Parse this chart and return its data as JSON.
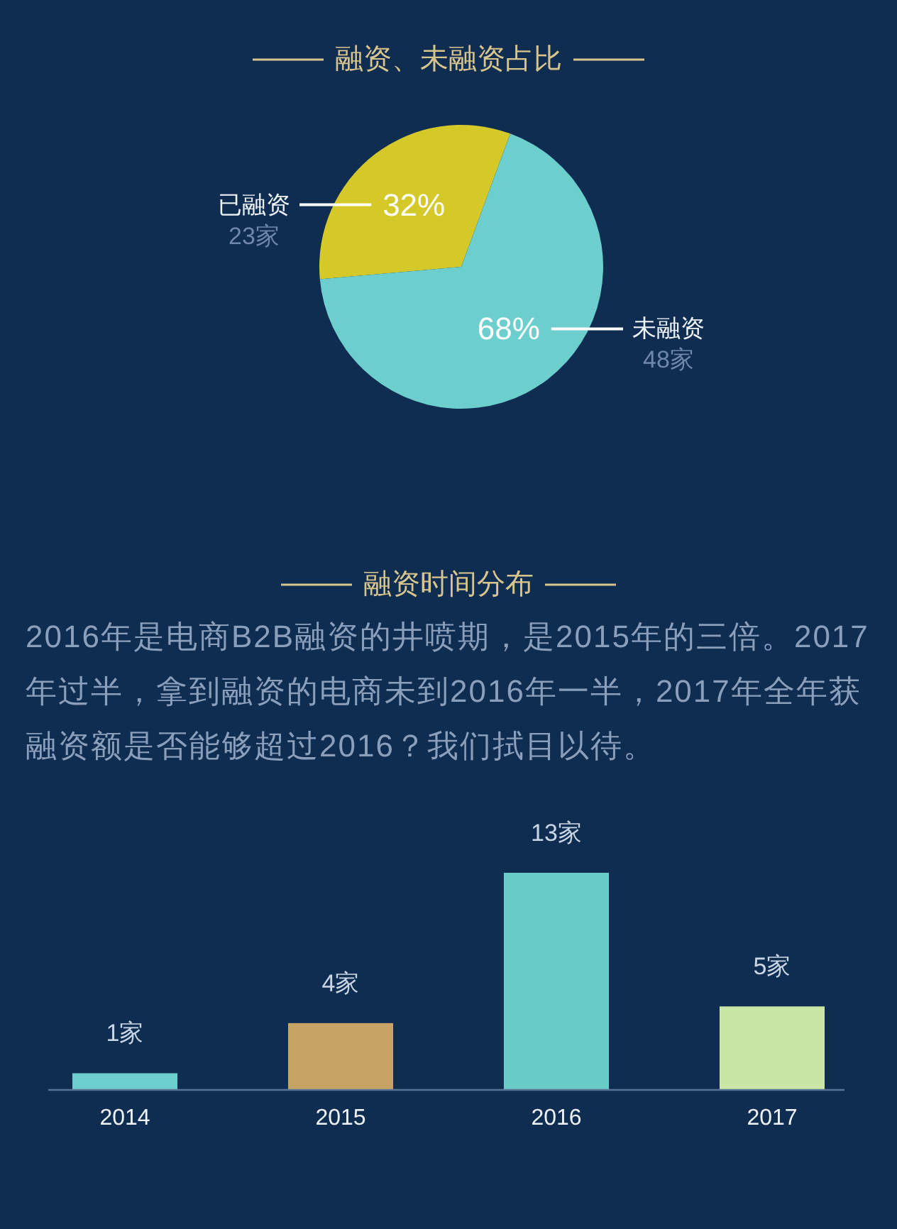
{
  "chart_data": [
    {
      "type": "pie",
      "title": "融资、未融资占比",
      "categories": [
        "已融资",
        "未融资"
      ],
      "values": [
        32,
        68
      ],
      "colors": [
        "#d5c92a",
        "#6dcfcd"
      ],
      "value_labels": [
        "32%",
        "68%"
      ],
      "annotations": [
        "23家",
        "48家"
      ]
    },
    {
      "type": "bar",
      "title": "融资时间分布",
      "subtitle": "2016年是电商B2B融资的井喷期，是2015年的三倍。2017年过半，拿到融资的电商未到2016年一半，2017年全年获融资额是否能够超过2016？我们拭目以待。",
      "categories": [
        "2014",
        "2015",
        "2016",
        "2017"
      ],
      "values": [
        1,
        4,
        13,
        5
      ],
      "colors": [
        "#6dcfcd",
        "#c7a466",
        "#6accc9",
        "#c9e6a7"
      ],
      "value_labels": [
        "1家",
        "4家",
        "13家",
        "5家"
      ]
    }
  ]
}
